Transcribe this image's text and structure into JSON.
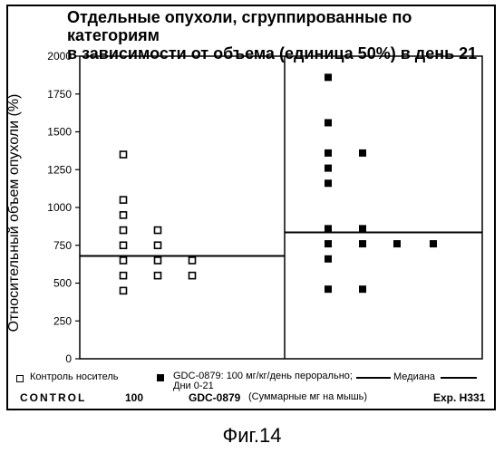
{
  "title": "Отдельные опухоли, сгруппированные по категориям\nв зависимости от объема (единица 50%) в день 21",
  "chart_data": {
    "type": "scatter",
    "title": "Отдельные опухоли, сгруппированные по категориям\nв зависимости от объема (единица 50%) в день 21",
    "ylabel": "Относительный объем опухоли (%)",
    "ylim": [
      0,
      2000
    ],
    "yticks": [
      0,
      250,
      500,
      750,
      1000,
      1250,
      1500,
      1750,
      2000
    ],
    "groups": [
      {
        "name": "Контроль носитель",
        "marker": "open-square",
        "median": 680,
        "points": [
          {
            "x": 1,
            "y": 1350
          },
          {
            "x": 1,
            "y": 1050
          },
          {
            "x": 1,
            "y": 950
          },
          {
            "x": 1,
            "y": 850
          },
          {
            "x": 1,
            "y": 750
          },
          {
            "x": 1,
            "y": 650
          },
          {
            "x": 1,
            "y": 550
          },
          {
            "x": 1,
            "y": 450
          },
          {
            "x": 2,
            "y": 850
          },
          {
            "x": 2,
            "y": 750
          },
          {
            "x": 2,
            "y": 650
          },
          {
            "x": 2,
            "y": 550
          },
          {
            "x": 3,
            "y": 650
          },
          {
            "x": 3,
            "y": 550
          }
        ]
      },
      {
        "name": "GDC-0879: 100 мг/кг/день перорально; Дни 0-21",
        "marker": "filled-square",
        "median": 835,
        "points": [
          {
            "x": 1,
            "y": 1860
          },
          {
            "x": 1,
            "y": 1560
          },
          {
            "x": 1,
            "y": 1360
          },
          {
            "x": 1,
            "y": 1260
          },
          {
            "x": 1,
            "y": 1160
          },
          {
            "x": 1,
            "y": 860
          },
          {
            "x": 1,
            "y": 760
          },
          {
            "x": 1,
            "y": 660
          },
          {
            "x": 1,
            "y": 460
          },
          {
            "x": 2,
            "y": 1360
          },
          {
            "x": 2,
            "y": 860
          },
          {
            "x": 2,
            "y": 760
          },
          {
            "x": 2,
            "y": 460
          },
          {
            "x": 3,
            "y": 760
          },
          {
            "x": 4,
            "y": 760
          }
        ]
      }
    ]
  },
  "legend": {
    "control_label": "Контроль носитель",
    "gdc_label": "GDC-0879: 100 мг/кг/день перорально;\nДни 0-21",
    "median_label": "Медиана"
  },
  "footer": {
    "control": "CONTROL",
    "dose": "100",
    "compound": "GDC-0879",
    "note": "(Суммарные мг на мышь)",
    "experiment": "Exp. H331"
  },
  "caption": "Фиг.14"
}
